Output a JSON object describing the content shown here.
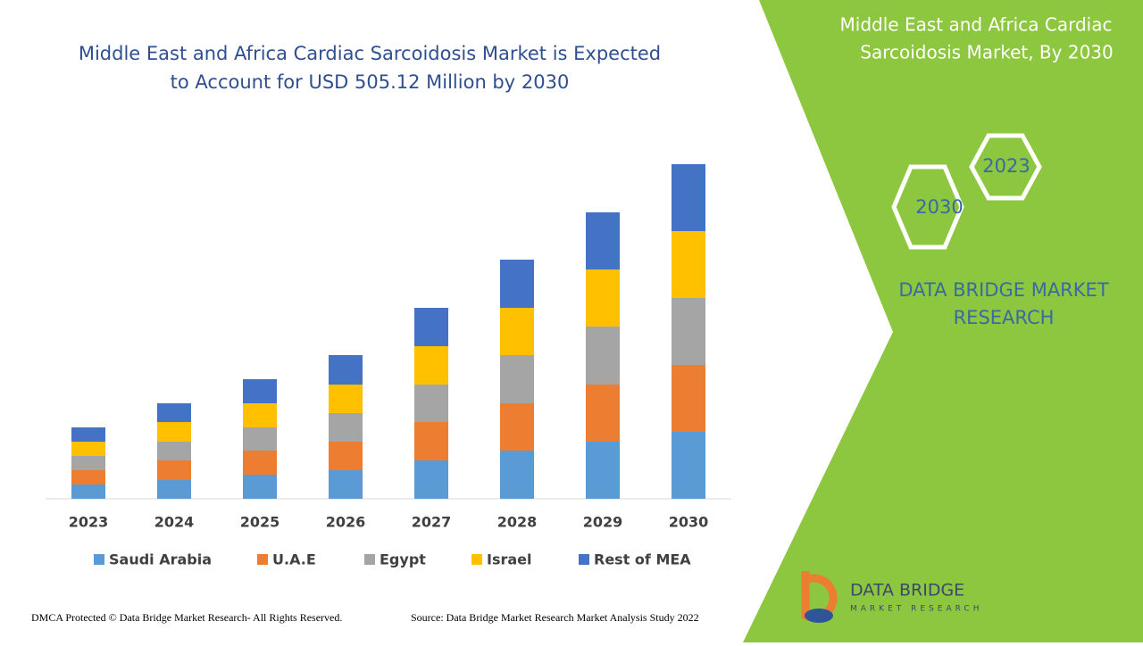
{
  "chart_data": {
    "type": "bar",
    "stacked": true,
    "title": "Middle East and Africa Cardiac Sarcoidosis Market is Expected to Account for USD 505.12 Million by 2030",
    "categories": [
      "2023",
      "2024",
      "2025",
      "2026",
      "2027",
      "2028",
      "2029",
      "2030"
    ],
    "series": [
      {
        "name": "Saudi Arabia",
        "color": "#5b9bd5",
        "values": [
          16,
          21,
          27,
          32,
          43,
          54,
          64,
          75
        ]
      },
      {
        "name": "U.A.E",
        "color": "#ed7d31",
        "values": [
          16,
          22,
          27,
          32,
          43,
          53,
          64,
          75
        ]
      },
      {
        "name": "Egypt",
        "color": "#a5a5a5",
        "values": [
          16,
          21,
          26,
          32,
          42,
          54,
          65,
          75
        ]
      },
      {
        "name": "Israel",
        "color": "#ffc000",
        "values": [
          16,
          22,
          27,
          32,
          43,
          53,
          64,
          75
        ]
      },
      {
        "name": "Rest of MEA",
        "color": "#4472c4",
        "values": [
          16,
          21,
          27,
          33,
          43,
          54,
          64,
          75
        ]
      }
    ],
    "ylim": [
      0,
      380
    ],
    "legend": "bottom"
  },
  "panel": {
    "title": "Middle East and Africa Cardiac Sarcoidosis Market, By 2030",
    "hex_top": "2023",
    "hex_bottom": "2030",
    "brand": "DATA BRIDGE MARKET RESEARCH"
  },
  "logo": {
    "name": "DATA BRIDGE",
    "tagline": "MARKET RESEARCH"
  },
  "footer": {
    "left": "DMCA Protected © Data Bridge Market Research- All Rights Reserved.",
    "right": "Source: Data Bridge Market Research Market Analysis Study 2022"
  }
}
